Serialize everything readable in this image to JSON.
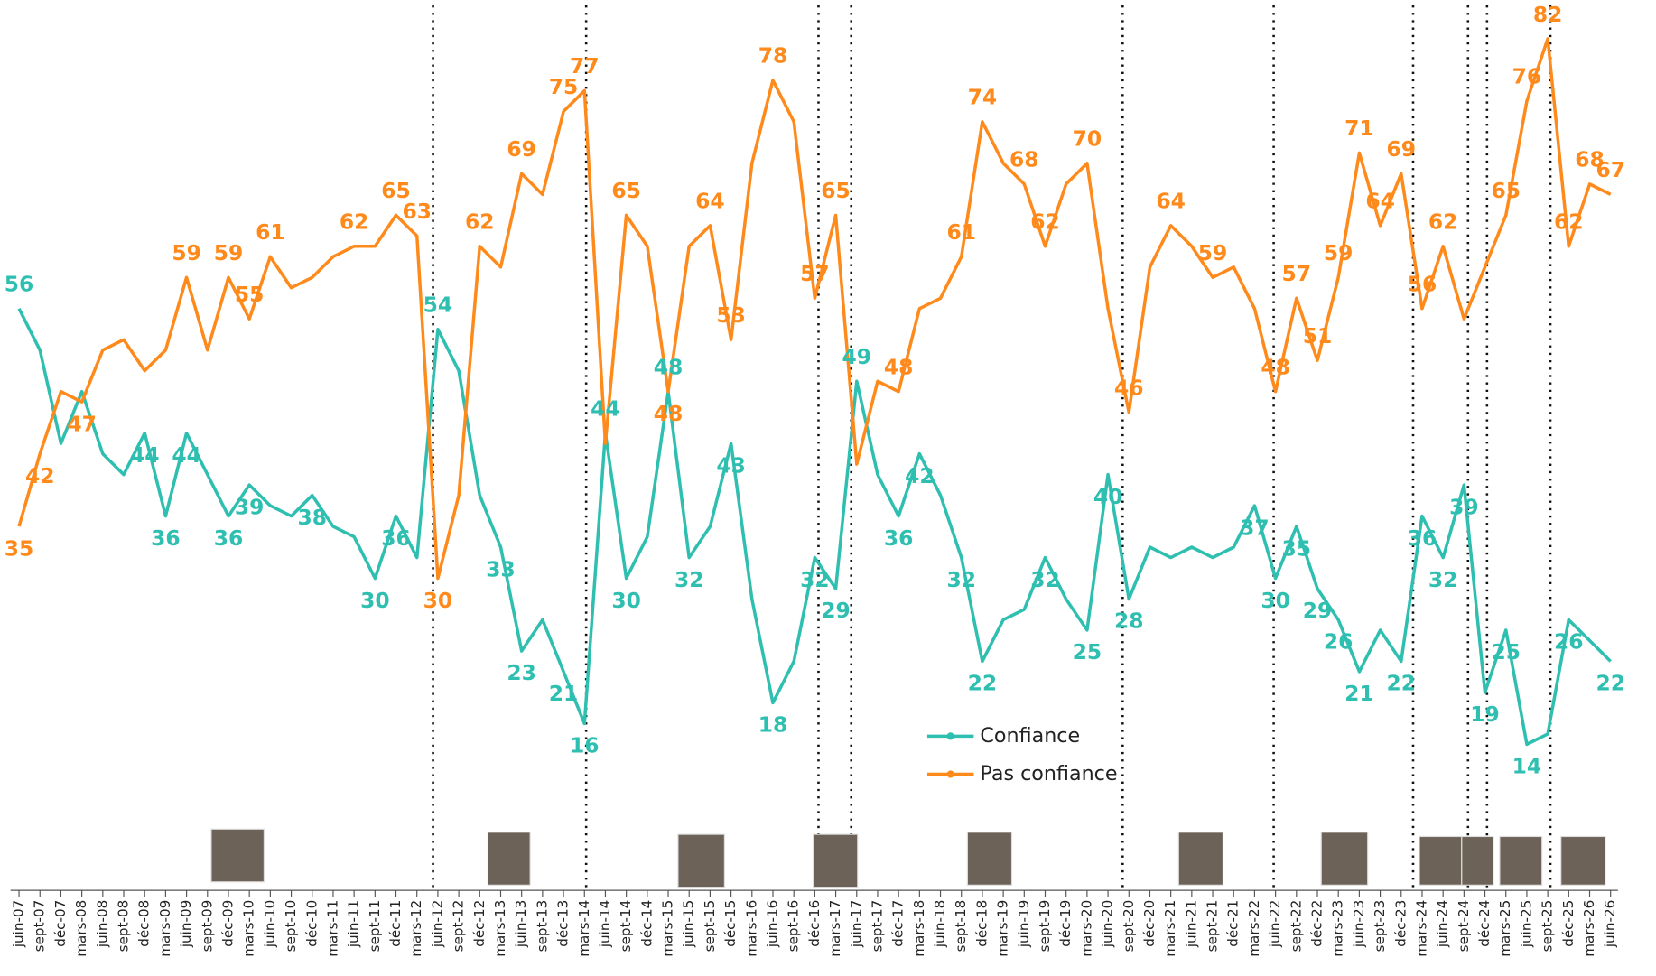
{
  "chart_data": {
    "type": "line",
    "categories": [
      "juin-07",
      "sept-07",
      "déc-07",
      "mars-08",
      "juin-08",
      "sept-08",
      "déc-08",
      "mars-09",
      "juin-09",
      "sept-09",
      "déc-09",
      "mars-10",
      "juin-10",
      "sept-10",
      "déc-10",
      "mars-11",
      "juin-11",
      "sept-11",
      "déc-11",
      "mars-12",
      "juin-12",
      "sept-12",
      "déc-12",
      "mars-13",
      "juin-13",
      "sept-13",
      "déc-13",
      "mars-14",
      "juin-14",
      "sept-14",
      "déc-14",
      "mars-15",
      "juin-15",
      "sept-15",
      "déc-15",
      "mars-16",
      "juin-16",
      "sept-16",
      "déc-16",
      "mars-17",
      "juin-17",
      "sept-17",
      "déc-17",
      "mars-18",
      "juin-18",
      "sept-18",
      "déc-18",
      "mars-19",
      "juin-19",
      "sept-19",
      "déc-19",
      "mars-20",
      "juin-20",
      "sept-20",
      "déc-20",
      "mars-21",
      "juin-21",
      "sept-21",
      "déc-21",
      "mars-22",
      "juin-22",
      "sept-22",
      "déc-22",
      "mars-23",
      "juin-23",
      "sept-23",
      "déc-23",
      "mars-24",
      "juin-24",
      "sept-24",
      "déc-24",
      "mars-25",
      "juin-25",
      "sept-25",
      "déc-25",
      "mars-26",
      "juin-26"
    ],
    "series": [
      {
        "name": "Confiance",
        "color": "#2fbfb1",
        "values": [
          56,
          52,
          43,
          48,
          42,
          40,
          44,
          36,
          44,
          40,
          36,
          39,
          37,
          36,
          38,
          35,
          34,
          30,
          36,
          32,
          54,
          50,
          38,
          33,
          23,
          26,
          21,
          16,
          44,
          30,
          34,
          48,
          32,
          35,
          43,
          28,
          18,
          22,
          32,
          29,
          49,
          40,
          36,
          42,
          38,
          32,
          22,
          26,
          27,
          32,
          28,
          25,
          40,
          28,
          33,
          32,
          33,
          32,
          33,
          37,
          30,
          35,
          29,
          26,
          21,
          25,
          22,
          36,
          32,
          39,
          19,
          25,
          14,
          15,
          26,
          24,
          22
        ],
        "value_labels": [
          "56",
          null,
          null,
          null,
          null,
          null,
          "44",
          "36",
          "44",
          null,
          "36",
          "39",
          null,
          null,
          "38",
          null,
          null,
          "30",
          "36",
          null,
          "54",
          null,
          null,
          "33",
          "23",
          null,
          "21",
          "16",
          "44",
          "30",
          null,
          "48",
          "32",
          null,
          "43",
          null,
          "18",
          null,
          "32",
          "29",
          "49",
          null,
          "36",
          "42",
          null,
          "32",
          "22",
          null,
          null,
          "32",
          null,
          "25",
          "40",
          "28",
          null,
          null,
          null,
          null,
          null,
          "37",
          "30",
          "35",
          "29",
          "26",
          "21",
          null,
          "22",
          "36",
          "32",
          "39",
          "19",
          "25",
          "14",
          null,
          "26",
          null,
          "22"
        ]
      },
      {
        "name": "Pas confiance",
        "color": "#ff8a1c",
        "values": [
          35,
          42,
          48,
          47,
          52,
          53,
          50,
          52,
          59,
          52,
          59,
          55,
          61,
          58,
          59,
          61,
          62,
          62,
          65,
          63,
          30,
          38,
          62,
          60,
          69,
          67,
          75,
          77,
          43,
          65,
          62,
          48,
          62,
          64,
          53,
          70,
          78,
          74,
          57,
          65,
          41,
          49,
          48,
          56,
          57,
          61,
          74,
          70,
          68,
          62,
          68,
          70,
          56,
          46,
          60,
          64,
          62,
          59,
          60,
          56,
          48,
          57,
          51,
          59,
          71,
          64,
          69,
          56,
          62,
          55,
          60,
          65,
          76,
          82,
          62,
          68,
          67
        ],
        "value_labels": [
          "35",
          "42",
          null,
          "47",
          null,
          null,
          null,
          null,
          "59",
          null,
          "59",
          "55",
          "61",
          null,
          null,
          null,
          "62",
          null,
          "65",
          "63",
          "30",
          null,
          "62",
          null,
          "69",
          null,
          "75",
          "77",
          null,
          "65",
          null,
          "48",
          null,
          "64",
          "53",
          null,
          "78",
          null,
          "57",
          "65",
          null,
          null,
          "48",
          null,
          null,
          "61",
          "74",
          null,
          "68",
          "62",
          null,
          "70",
          null,
          "46",
          null,
          "64",
          null,
          "59",
          null,
          null,
          "48",
          "57",
          "51",
          "59",
          "71",
          "64",
          "69",
          "56",
          "62",
          null,
          null,
          "65",
          "76",
          "82",
          "62",
          "68",
          "67"
        ]
      }
    ],
    "ylim": [
      10,
      84
    ]
  }
}
